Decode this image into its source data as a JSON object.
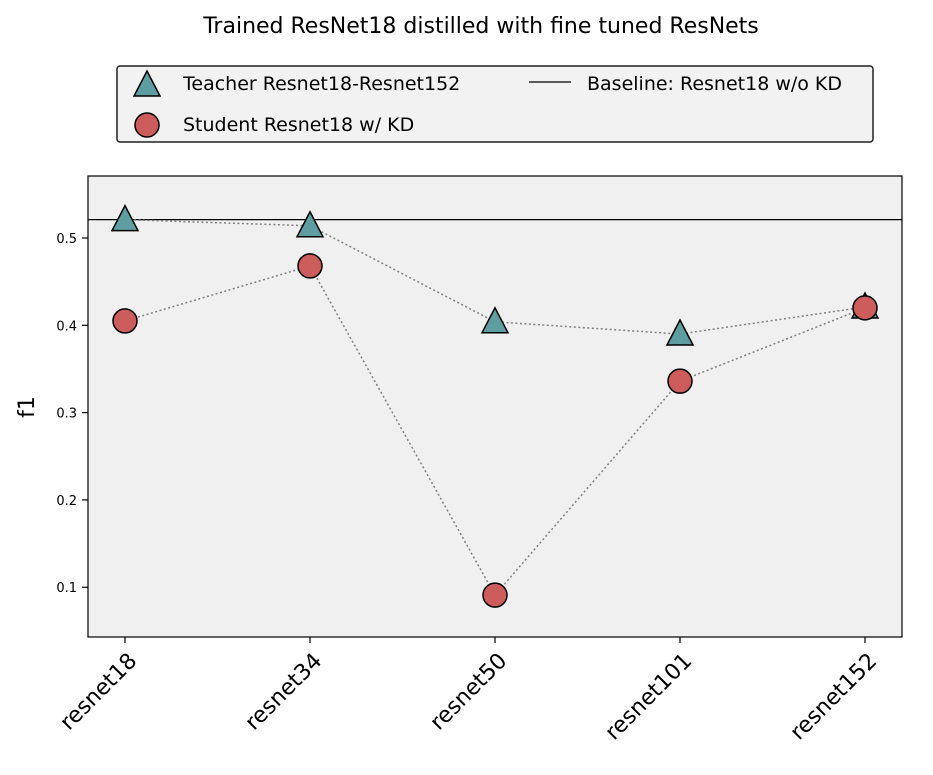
{
  "chart_data": {
    "type": "scatter",
    "title": "Trained ResNet18 distilled with fine tuned ResNets",
    "xlabel": "",
    "ylabel": "f1",
    "categories": [
      "resnet18",
      "resnet34",
      "resnet50",
      "resnet101",
      "resnet152"
    ],
    "ylim": [
      0.043,
      0.571
    ],
    "yticks": [
      0.1,
      0.2,
      0.3,
      0.4,
      0.5
    ],
    "series": [
      {
        "name": "Teacher Resnet18-Resnet152",
        "marker": "triangle",
        "color": "#5f9ea0",
        "values": [
          0.521,
          0.514,
          0.404,
          0.39,
          0.421
        ]
      },
      {
        "name": "Student Resnet18 w/ KD",
        "marker": "circle",
        "color": "#cd5c5c",
        "values": [
          0.405,
          0.468,
          0.091,
          0.336,
          0.42
        ]
      }
    ],
    "baseline": {
      "name": "Baseline: Resnet18 w/o KD",
      "value": 0.521,
      "color": "#000000"
    },
    "connector_color": "#808080",
    "plot_background": "#f0f0f0",
    "grid": false,
    "legend_position": "top"
  }
}
